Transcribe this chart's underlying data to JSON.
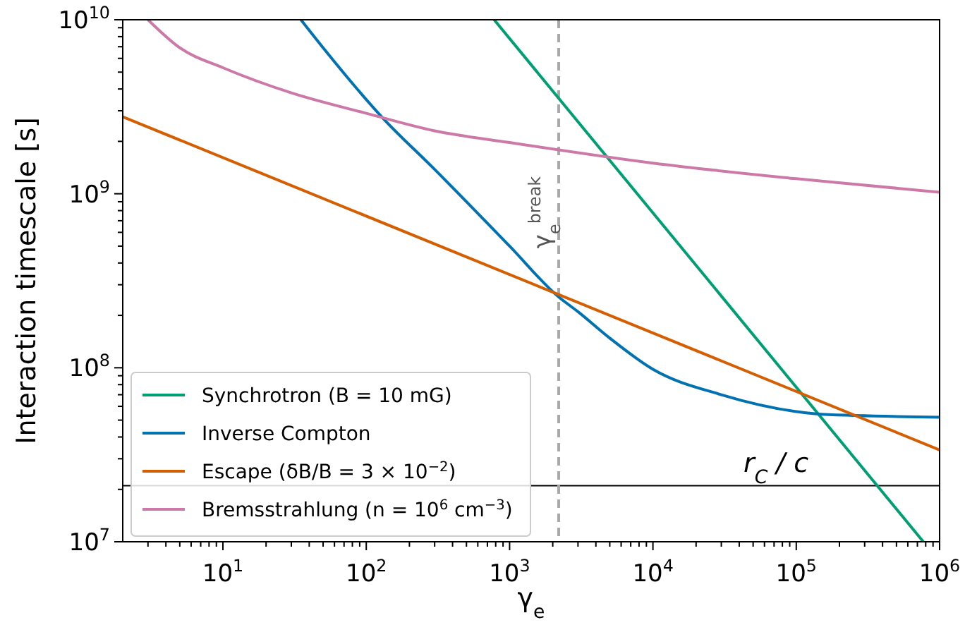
{
  "chart_data": {
    "type": "line",
    "xlabel": "γ$_{e}$",
    "ylabel": "Interaction timescale [s]",
    "log": "xy",
    "grid": false,
    "legend": "bottom left",
    "xlim": [
      2,
      1000000
    ],
    "ylim": [
      10000000,
      10000000000
    ],
    "xticks": [
      {
        "value": 10,
        "label": "10$^{1}$"
      },
      {
        "value": 100,
        "label": "10$^{2}$"
      },
      {
        "value": 1000,
        "label": "10$^{3}$"
      },
      {
        "value": 10000,
        "label": "10$^{4}$"
      },
      {
        "value": 100000,
        "label": "10$^{5}$"
      },
      {
        "value": 1000000,
        "label": "10$^{6}$"
      },
      {
        "value": 3,
        "label": null
      },
      {
        "value": 4,
        "label": null
      },
      {
        "value": 5,
        "label": null
      },
      {
        "value": 6,
        "label": null
      },
      {
        "value": 7,
        "label": null
      },
      {
        "value": 8,
        "label": null
      },
      {
        "value": 9,
        "label": null
      },
      {
        "value": 20,
        "label": null
      },
      {
        "value": 30,
        "label": null
      },
      {
        "value": 40,
        "label": null
      },
      {
        "value": 50,
        "label": null
      },
      {
        "value": 60,
        "label": null
      },
      {
        "value": 70,
        "label": null
      },
      {
        "value": 80,
        "label": null
      },
      {
        "value": 90,
        "label": null
      },
      {
        "value": 200,
        "label": null
      },
      {
        "value": 300,
        "label": null
      },
      {
        "value": 400,
        "label": null
      },
      {
        "value": 500,
        "label": null
      },
      {
        "value": 600,
        "label": null
      },
      {
        "value": 700,
        "label": null
      },
      {
        "value": 800,
        "label": null
      },
      {
        "value": 900,
        "label": null
      },
      {
        "value": 2000,
        "label": null
      },
      {
        "value": 3000,
        "label": null
      },
      {
        "value": 4000,
        "label": null
      },
      {
        "value": 5000,
        "label": null
      },
      {
        "value": 6000,
        "label": null
      },
      {
        "value": 7000,
        "label": null
      },
      {
        "value": 8000,
        "label": null
      },
      {
        "value": 9000,
        "label": null
      },
      {
        "value": 20000,
        "label": null
      },
      {
        "value": 30000,
        "label": null
      },
      {
        "value": 40000,
        "label": null
      },
      {
        "value": 50000,
        "label": null
      },
      {
        "value": 60000,
        "label": null
      },
      {
        "value": 70000,
        "label": null
      },
      {
        "value": 80000,
        "label": null
      },
      {
        "value": 90000,
        "label": null
      },
      {
        "value": 200000,
        "label": null
      },
      {
        "value": 300000,
        "label": null
      },
      {
        "value": 400000,
        "label": null
      },
      {
        "value": 500000,
        "label": null
      },
      {
        "value": 600000,
        "label": null
      },
      {
        "value": 700000,
        "label": null
      },
      {
        "value": 800000,
        "label": null
      },
      {
        "value": 900000,
        "label": null
      }
    ],
    "yticks": [
      {
        "value": 10000000,
        "label": "10$^{7}$"
      },
      {
        "value": 100000000,
        "label": "10$^{8}$"
      },
      {
        "value": 1000000000,
        "label": "10$^{9}$"
      },
      {
        "value": 10000000000,
        "label": "10$^{10}$"
      },
      {
        "value": 20000000,
        "label": null
      },
      {
        "value": 30000000,
        "label": null
      },
      {
        "value": 40000000,
        "label": null
      },
      {
        "value": 50000000,
        "label": null
      },
      {
        "value": 60000000,
        "label": null
      },
      {
        "value": 70000000,
        "label": null
      },
      {
        "value": 80000000,
        "label": null
      },
      {
        "value": 90000000,
        "label": null
      },
      {
        "value": 200000000,
        "label": null
      },
      {
        "value": 300000000,
        "label": null
      },
      {
        "value": 400000000,
        "label": null
      },
      {
        "value": 500000000,
        "label": null
      },
      {
        "value": 600000000,
        "label": null
      },
      {
        "value": 700000000,
        "label": null
      },
      {
        "value": 800000000,
        "label": null
      },
      {
        "value": 900000000,
        "label": null
      },
      {
        "value": 2000000000,
        "label": null
      },
      {
        "value": 3000000000,
        "label": null
      },
      {
        "value": 4000000000,
        "label": null
      },
      {
        "value": 5000000000,
        "label": null
      },
      {
        "value": 6000000000,
        "label": null
      },
      {
        "value": 7000000000,
        "label": null
      },
      {
        "value": 8000000000,
        "label": null
      },
      {
        "value": 9000000000,
        "label": null
      }
    ],
    "series": [
      {
        "name": "Synchrotron (B = 10 mG)",
        "color": "#009e73",
        "x": [
          780,
          770000
        ],
        "values": [
          10000000000,
          10000000
        ]
      },
      {
        "name": "Inverse Compton",
        "color": "#0072b2",
        "x": [
          35,
          50,
          129,
          300,
          1000,
          2200,
          3000,
          5000,
          10000,
          30000,
          100000,
          150000,
          1000000
        ],
        "values": [
          10000000000,
          6900000000,
          2750000000,
          1380000000,
          500000000,
          255000000,
          210000000,
          148000000,
          98000000,
          70000000,
          56000000,
          54000000,
          52000000
        ]
      },
      {
        "name": "Escape (δB/B = 3 × 10$^{−2}$)",
        "color": "#d55e00",
        "x": [
          2,
          1000000
        ],
        "values": [
          2770000000,
          33700000
        ]
      },
      {
        "name": "Bremsstrahlung (n = 10$^{6}$ cm$^{−3}$)",
        "color": "#cc79a7",
        "x": [
          3,
          5,
          10,
          30,
          100,
          300,
          1000,
          10000,
          100000,
          1000000
        ],
        "values": [
          10000000000,
          6900000000,
          5300000000,
          3800000000,
          2900000000,
          2300000000,
          1970000000,
          1500000000,
          1220000000,
          1020000000
        ]
      }
    ],
    "ref_lines": [
      {
        "axis": "y",
        "value": 21000000,
        "label": "r$_{C}$ / c",
        "color": "#000000",
        "line_style": "solid"
      },
      {
        "axis": "x",
        "value": 2200,
        "label": "γ$_{e}$$^{break}$",
        "color": "#a9a9a9",
        "line_style": "dashed"
      }
    ]
  }
}
